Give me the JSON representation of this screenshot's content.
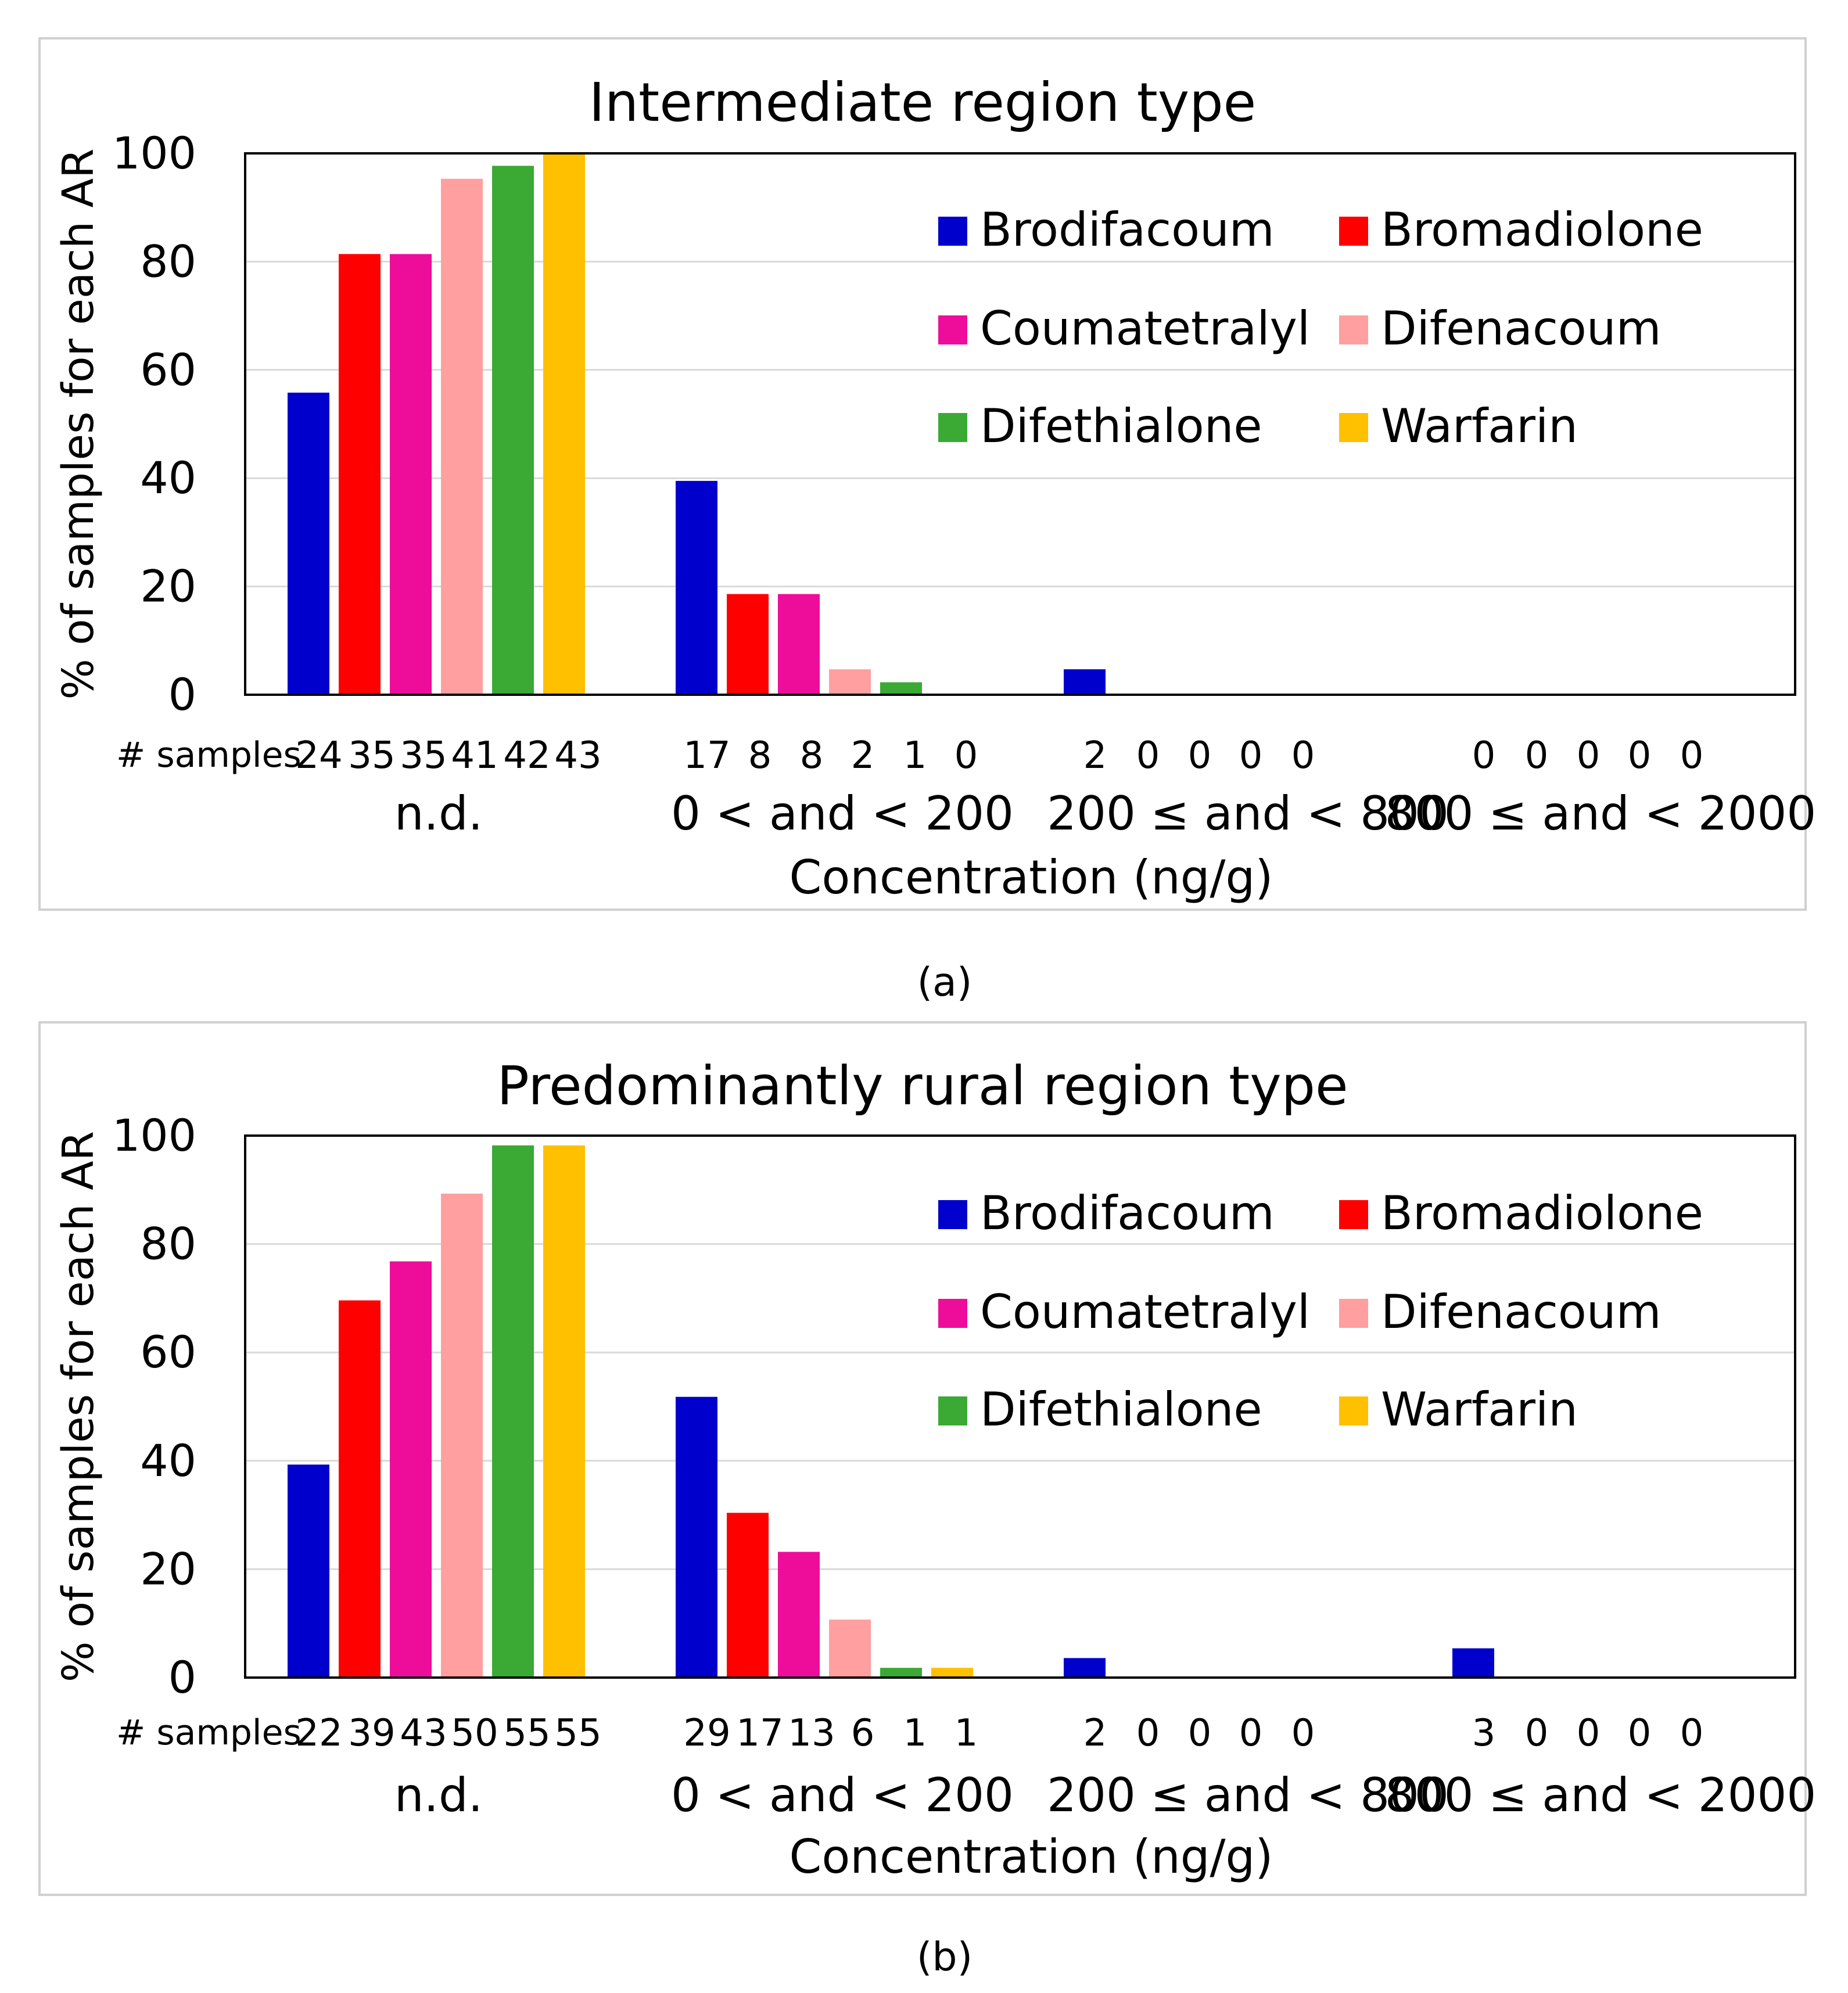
{
  "chart_data": [
    {
      "type": "bar",
      "title": "Intermediate region type",
      "xlabel": "Concentration (ng/g)",
      "ylabel": "% of samples for each AR",
      "ylim": [
        0,
        100
      ],
      "yticks": [
        "0",
        "20",
        "40",
        "60",
        "80",
        "100"
      ],
      "categories": [
        "n.d.",
        "0 < and < 200",
        "200 ≤ and < 800",
        "800 ≤ and < 2000"
      ],
      "samples_label": "# samples",
      "legend_position": "top-right",
      "series": [
        {
          "name": "Brodifacoum",
          "color": "#0000cc",
          "values": [
            55.8,
            39.5,
            4.7,
            0
          ],
          "samples": [
            "24",
            "17",
            "2",
            "0"
          ]
        },
        {
          "name": "Bromadiolone",
          "color": "#ff0000",
          "values": [
            81.4,
            18.6,
            0,
            0
          ],
          "samples": [
            "35",
            "8",
            "0",
            "0"
          ]
        },
        {
          "name": "Coumatetralyl",
          "color": "#ee0d9b",
          "values": [
            81.4,
            18.6,
            0,
            0
          ],
          "samples": [
            "35",
            "8",
            "0",
            "0"
          ]
        },
        {
          "name": "Difenacoum",
          "color": "#ff9f9f",
          "values": [
            95.3,
            4.7,
            0,
            0
          ],
          "samples": [
            "41",
            "2",
            "0",
            "0"
          ]
        },
        {
          "name": "Difethialone",
          "color": "#3aaa35",
          "values": [
            97.7,
            2.3,
            0,
            0
          ],
          "samples": [
            "42",
            "1",
            "0",
            "0"
          ]
        },
        {
          "name": "Warfarin",
          "color": "#ffc000",
          "values": [
            100,
            0,
            0,
            0
          ],
          "samples": [
            "43",
            "0",
            "",
            ""
          ]
        }
      ],
      "caption": "(a)"
    },
    {
      "type": "bar",
      "title": "Predominantly rural region type",
      "xlabel": "Concentration (ng/g)",
      "ylabel": "% of samples for each AR",
      "ylim": [
        0,
        100
      ],
      "yticks": [
        "0",
        "20",
        "40",
        "60",
        "80",
        "100"
      ],
      "categories": [
        "n.d.",
        "0 < and < 200",
        "200 ≤ and < 800",
        "800 ≤ and < 2000"
      ],
      "samples_label": "# samples",
      "legend_position": "top-right",
      "series": [
        {
          "name": "Brodifacoum",
          "color": "#0000cc",
          "values": [
            39.3,
            51.8,
            3.6,
            5.4
          ],
          "samples": [
            "22",
            "29",
            "2",
            "3"
          ]
        },
        {
          "name": "Bromadiolone",
          "color": "#ff0000",
          "values": [
            69.6,
            30.4,
            0,
            0
          ],
          "samples": [
            "39",
            "17",
            "0",
            "0"
          ]
        },
        {
          "name": "Coumatetralyl",
          "color": "#ee0d9b",
          "values": [
            76.8,
            23.2,
            0,
            0
          ],
          "samples": [
            "43",
            "13",
            "0",
            "0"
          ]
        },
        {
          "name": "Difenacoum",
          "color": "#ff9f9f",
          "values": [
            89.3,
            10.7,
            0,
            0
          ],
          "samples": [
            "50",
            "6",
            "0",
            "0"
          ]
        },
        {
          "name": "Difethialone",
          "color": "#3aaa35",
          "values": [
            98.2,
            1.8,
            0,
            0
          ],
          "samples": [
            "55",
            "1",
            "0",
            "0"
          ]
        },
        {
          "name": "Warfarin",
          "color": "#ffc000",
          "values": [
            98.2,
            1.8,
            0,
            0
          ],
          "samples": [
            "55",
            "1",
            "",
            ""
          ]
        }
      ],
      "caption": "(b)"
    }
  ]
}
